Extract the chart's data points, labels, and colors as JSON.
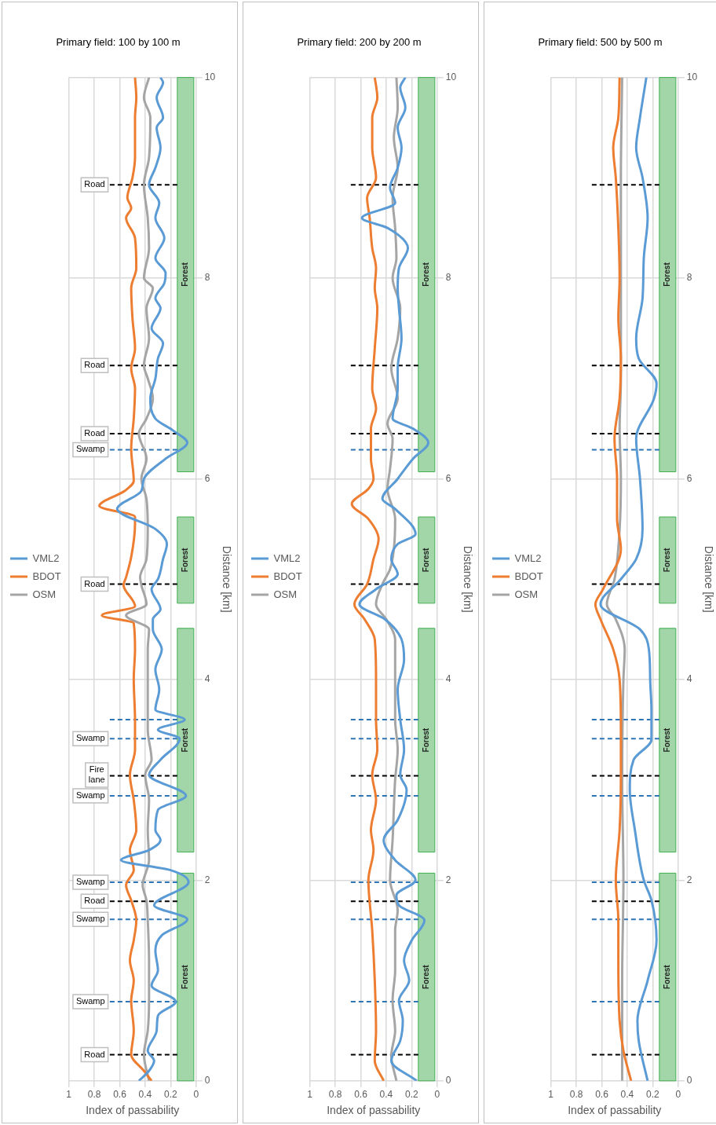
{
  "chart_data": [
    {
      "type": "line",
      "title": "Primary field: 100 by 100 m",
      "xlabel": "Index of passability",
      "ylabel": "Distance [km]",
      "xlim": [
        1,
        0
      ],
      "xticks": [
        1,
        0.8,
        0.6,
        0.4,
        0.2,
        0
      ],
      "ylim": [
        0,
        10
      ],
      "yticks": [
        0,
        2,
        4,
        6,
        8,
        10
      ],
      "grid": true,
      "legend": "left",
      "marker": "none",
      "line_style": "solid",
      "series": [
        {
          "name": "VML2",
          "color": "#5b9bd5",
          "x": [
            0.45,
            0.37,
            0.33,
            0.38,
            0.31,
            0.3,
            0.16,
            0.35,
            0.3,
            0.32,
            0.27,
            0.07,
            0.33,
            0.06,
            0.2,
            0.59,
            0.37,
            0.28,
            0.32,
            0.3,
            0.08,
            0.37,
            0.28,
            0.13,
            0.3,
            0.09,
            0.32,
            0.29,
            0.32,
            0.27,
            0.34,
            0.34,
            0.28,
            0.35,
            0.3,
            0.26,
            0.23,
            0.32,
            0.62,
            0.43,
            0.41,
            0.24,
            0.07,
            0.18,
            0.32,
            0.36,
            0.32,
            0.3,
            0.26,
            0.35,
            0.28,
            0.32,
            0.25,
            0.24,
            0.32,
            0.25,
            0.32,
            0.29,
            0.37,
            0.32,
            0.28,
            0.31,
            0.26,
            0.31,
            0.26,
            0.28
          ],
          "values": [
            0,
            0.1,
            0.2,
            0.3,
            0.5,
            0.65,
            0.79,
            0.95,
            1.1,
            1.3,
            1.45,
            1.61,
            1.75,
            1.98,
            2.1,
            2.2,
            2.3,
            2.4,
            2.5,
            2.7,
            2.84,
            3.05,
            3.2,
            3.41,
            3.5,
            3.6,
            3.7,
            3.9,
            4.1,
            4.3,
            4.5,
            4.6,
            4.7,
            4.9,
            5.0,
            5.2,
            5.35,
            5.5,
            5.7,
            5.88,
            6.0,
            6.2,
            6.36,
            6.48,
            6.6,
            6.8,
            7.0,
            7.2,
            7.35,
            7.5,
            7.7,
            7.8,
            7.95,
            8.05,
            8.2,
            8.4,
            8.6,
            8.75,
            8.93,
            9.1,
            9.3,
            9.5,
            9.6,
            9.8,
            9.95,
            10
          ]
        },
        {
          "name": "BDOT",
          "color": "#ed7d31",
          "x": [
            0.35,
            0.41,
            0.51,
            0.49,
            0.51,
            0.49,
            0.52,
            0.49,
            0.47,
            0.51,
            0.55,
            0.49,
            0.52,
            0.47,
            0.49,
            0.52,
            0.48,
            0.48,
            0.49,
            0.48,
            0.49,
            0.74,
            0.48,
            0.57,
            0.55,
            0.51,
            0.48,
            0.48,
            0.76,
            0.56,
            0.49,
            0.51,
            0.49,
            0.48,
            0.51,
            0.48,
            0.5,
            0.51,
            0.47,
            0.48,
            0.55,
            0.51,
            0.54,
            0.5,
            0.48,
            0.48,
            0.47,
            0.48
          ],
          "values": [
            0,
            0.1,
            0.26,
            0.5,
            0.8,
            1.0,
            1.2,
            1.4,
            1.6,
            1.8,
            1.95,
            2.1,
            2.3,
            2.5,
            2.8,
            3.05,
            3.3,
            3.6,
            4.0,
            4.3,
            4.56,
            4.64,
            4.73,
            4.94,
            5.02,
            5.22,
            5.55,
            5.62,
            5.73,
            5.88,
            5.98,
            6.3,
            6.6,
            6.9,
            7.1,
            7.3,
            7.6,
            7.9,
            8.1,
            8.4,
            8.6,
            8.7,
            8.8,
            9.0,
            9.2,
            9.6,
            9.8,
            10
          ]
        },
        {
          "name": "OSM",
          "color": "#a5a5a5",
          "x": [
            0.37,
            0.41,
            0.38,
            0.37,
            0.37,
            0.38,
            0.39,
            0.42,
            0.37,
            0.38,
            0.37,
            0.4,
            0.35,
            0.38,
            0.38,
            0.38,
            0.37,
            0.55,
            0.39,
            0.43,
            0.44,
            0.39,
            0.38,
            0.39,
            0.43,
            0.39,
            0.45,
            0.39,
            0.34,
            0.38,
            0.41,
            0.37,
            0.39,
            0.34,
            0.41,
            0.37,
            0.38,
            0.41,
            0.37,
            0.36,
            0.41,
            0.37
          ],
          "values": [
            0,
            0.26,
            0.5,
            0.8,
            1.2,
            1.6,
            1.8,
            1.95,
            2.2,
            2.5,
            2.8,
            3.05,
            3.2,
            3.5,
            4.0,
            4.3,
            4.5,
            4.64,
            4.75,
            4.94,
            5.02,
            5.2,
            5.5,
            5.8,
            6.0,
            6.2,
            6.45,
            6.6,
            6.8,
            7.0,
            7.13,
            7.4,
            7.7,
            7.9,
            8.0,
            8.3,
            8.6,
            8.93,
            9.2,
            9.6,
            9.8,
            10
          ]
        }
      ],
      "ref_lines": [
        {
          "axis": "y",
          "value": 0.26,
          "label": "Road",
          "color": "#000000",
          "line_style": "dashed"
        },
        {
          "axis": "y",
          "value": 0.79,
          "label": "Swamp",
          "color": "#2e75b6",
          "line_style": "dashed"
        },
        {
          "axis": "y",
          "value": 1.61,
          "label": "Swamp",
          "color": "#2e75b6",
          "line_style": "dashed"
        },
        {
          "axis": "y",
          "value": 1.79,
          "label": "Road",
          "color": "#000000",
          "line_style": "dashed"
        },
        {
          "axis": "y",
          "value": 1.98,
          "label": "Swamp",
          "color": "#2e75b6",
          "line_style": "dashed"
        },
        {
          "axis": "y",
          "value": 2.84,
          "label": "Swamp",
          "color": "#2e75b6",
          "line_style": "dashed"
        },
        {
          "axis": "y",
          "value": 3.04,
          "label": "Fire lane",
          "color": "#000000",
          "line_style": "dashed"
        },
        {
          "axis": "y",
          "value": 3.41,
          "label": "Swamp",
          "color": "#2e75b6",
          "line_style": "dashed"
        },
        {
          "axis": "y",
          "value": 3.6,
          "color": "#2e75b6",
          "line_style": "dashed"
        },
        {
          "axis": "y",
          "value": 4.95,
          "label": "Road",
          "color": "#000000",
          "line_style": "dashed"
        },
        {
          "axis": "y",
          "value": 6.29,
          "label": "Swamp",
          "color": "#2e75b6",
          "line_style": "dashed"
        },
        {
          "axis": "y",
          "value": 6.45,
          "label": "Road",
          "color": "#000000",
          "line_style": "dashed"
        },
        {
          "axis": "y",
          "value": 7.13,
          "label": "Road",
          "color": "#000000",
          "line_style": "dashed"
        },
        {
          "axis": "y",
          "value": 8.93,
          "label": "Road",
          "color": "#000000",
          "line_style": "dashed"
        }
      ],
      "bands": [
        {
          "axis": "y",
          "from": 0,
          "to": 2.07,
          "label": "Forest",
          "color": "#a2d6a8"
        },
        {
          "axis": "y",
          "from": 2.28,
          "to": 4.51,
          "label": "Forest",
          "color": "#a2d6a8"
        },
        {
          "axis": "y",
          "from": 4.76,
          "to": 5.62,
          "label": "Forest",
          "color": "#a2d6a8"
        },
        {
          "axis": "y",
          "from": 6.07,
          "to": 10,
          "label": "Forest",
          "color": "#a2d6a8"
        }
      ]
    },
    {
      "type": "line",
      "title": "Primary field: 200 by 200 m",
      "xlabel": "Index of passability",
      "ylabel": "Distance [km]",
      "xlim": [
        1,
        0
      ],
      "xticks": [
        1,
        0.8,
        0.6,
        0.4,
        0.2,
        0
      ],
      "ylim": [
        0,
        10
      ],
      "yticks": [
        0,
        2,
        4,
        6,
        8,
        10
      ],
      "grid": true,
      "legend": "left",
      "marker": "none",
      "line_style": "solid",
      "series": [
        {
          "name": "VML2",
          "color": "#5b9bd5",
          "x": [
            0.16,
            0.36,
            0.29,
            0.27,
            0.3,
            0.22,
            0.26,
            0.2,
            0.1,
            0.3,
            0.32,
            0.17,
            0.33,
            0.42,
            0.31,
            0.24,
            0.29,
            0.26,
            0.29,
            0.31,
            0.26,
            0.28,
            0.41,
            0.61,
            0.48,
            0.31,
            0.36,
            0.31,
            0.17,
            0.33,
            0.43,
            0.31,
            0.19,
            0.07,
            0.19,
            0.35,
            0.31,
            0.31,
            0.28,
            0.3,
            0.31,
            0.3,
            0.23,
            0.39,
            0.59,
            0.33,
            0.37,
            0.31,
            0.28,
            0.31,
            0.25,
            0.29,
            0.25
          ],
          "values": [
            0,
            0.2,
            0.4,
            0.6,
            0.8,
            1.0,
            1.2,
            1.4,
            1.6,
            1.75,
            1.85,
            2.0,
            2.2,
            2.4,
            2.6,
            2.9,
            3.05,
            3.3,
            3.6,
            3.9,
            4.2,
            4.4,
            4.6,
            4.75,
            4.9,
            5.05,
            5.2,
            5.35,
            5.45,
            5.7,
            5.8,
            6.0,
            6.2,
            6.36,
            6.5,
            6.6,
            6.9,
            7.1,
            7.4,
            7.7,
            7.9,
            8.1,
            8.3,
            8.5,
            8.6,
            8.75,
            8.9,
            9.1,
            9.3,
            9.5,
            9.7,
            9.9,
            10
          ]
        },
        {
          "name": "BDOT",
          "color": "#ed7d31",
          "x": [
            0.42,
            0.49,
            0.48,
            0.49,
            0.51,
            0.54,
            0.5,
            0.52,
            0.48,
            0.51,
            0.47,
            0.48,
            0.48,
            0.49,
            0.57,
            0.65,
            0.55,
            0.5,
            0.46,
            0.54,
            0.67,
            0.54,
            0.5,
            0.52,
            0.52,
            0.48,
            0.51,
            0.49,
            0.47,
            0.49,
            0.48,
            0.51,
            0.53,
            0.55,
            0.48,
            0.51,
            0.51,
            0.47,
            0.49
          ],
          "values": [
            0,
            0.2,
            0.5,
            1.0,
            1.5,
            2.0,
            2.3,
            2.5,
            2.8,
            3.05,
            3.3,
            3.6,
            4.0,
            4.4,
            4.6,
            4.75,
            4.95,
            5.2,
            5.4,
            5.6,
            5.75,
            5.9,
            6.0,
            6.2,
            6.5,
            6.7,
            6.9,
            7.3,
            7.7,
            7.9,
            8.1,
            8.3,
            8.6,
            8.8,
            9.0,
            9.3,
            9.6,
            9.8,
            10
          ]
        },
        {
          "name": "OSM",
          "color": "#a5a5a5",
          "x": [
            0.32,
            0.36,
            0.33,
            0.35,
            0.33,
            0.33,
            0.31,
            0.37,
            0.35,
            0.33,
            0.31,
            0.33,
            0.33,
            0.33,
            0.4,
            0.48,
            0.43,
            0.37,
            0.34,
            0.33,
            0.39,
            0.37,
            0.35,
            0.39,
            0.31,
            0.36,
            0.31,
            0.29,
            0.35,
            0.32,
            0.33,
            0.35,
            0.31,
            0.34,
            0.31,
            0.32
          ],
          "values": [
            0,
            0.25,
            0.5,
            0.8,
            1.1,
            1.5,
            1.7,
            2.0,
            2.4,
            3.0,
            3.3,
            3.6,
            4.0,
            4.4,
            4.6,
            4.75,
            4.95,
            5.1,
            5.3,
            5.6,
            5.9,
            6.1,
            6.4,
            6.55,
            6.8,
            7.1,
            7.4,
            7.7,
            8.0,
            8.2,
            8.5,
            8.8,
            9.1,
            9.4,
            9.7,
            10
          ]
        }
      ],
      "ref_lines": [
        {
          "axis": "y",
          "value": 0.26,
          "color": "#000000",
          "line_style": "dashed"
        },
        {
          "axis": "y",
          "value": 0.79,
          "color": "#2e75b6",
          "line_style": "dashed"
        },
        {
          "axis": "y",
          "value": 1.61,
          "color": "#2e75b6",
          "line_style": "dashed"
        },
        {
          "axis": "y",
          "value": 1.79,
          "color": "#000000",
          "line_style": "dashed"
        },
        {
          "axis": "y",
          "value": 1.98,
          "color": "#2e75b6",
          "line_style": "dashed"
        },
        {
          "axis": "y",
          "value": 2.84,
          "color": "#2e75b6",
          "line_style": "dashed"
        },
        {
          "axis": "y",
          "value": 3.04,
          "color": "#000000",
          "line_style": "dashed"
        },
        {
          "axis": "y",
          "value": 3.41,
          "color": "#2e75b6",
          "line_style": "dashed"
        },
        {
          "axis": "y",
          "value": 3.6,
          "color": "#2e75b6",
          "line_style": "dashed"
        },
        {
          "axis": "y",
          "value": 4.95,
          "color": "#000000",
          "line_style": "dashed"
        },
        {
          "axis": "y",
          "value": 6.29,
          "color": "#2e75b6",
          "line_style": "dashed"
        },
        {
          "axis": "y",
          "value": 6.45,
          "color": "#000000",
          "line_style": "dashed"
        },
        {
          "axis": "y",
          "value": 7.13,
          "color": "#000000",
          "line_style": "dashed"
        },
        {
          "axis": "y",
          "value": 8.93,
          "color": "#000000",
          "line_style": "dashed"
        }
      ],
      "bands": [
        {
          "axis": "y",
          "from": 0,
          "to": 2.07,
          "label": "Forest",
          "color": "#a2d6a8"
        },
        {
          "axis": "y",
          "from": 2.28,
          "to": 4.51,
          "label": "Forest",
          "color": "#a2d6a8"
        },
        {
          "axis": "y",
          "from": 4.76,
          "to": 5.62,
          "label": "Forest",
          "color": "#a2d6a8"
        },
        {
          "axis": "y",
          "from": 6.07,
          "to": 10,
          "label": "Forest",
          "color": "#a2d6a8"
        }
      ]
    },
    {
      "type": "line",
      "title": "Primary field: 500 by 500 m",
      "xlabel": "Index of passability",
      "ylabel": "Distance [km]",
      "xlim": [
        1,
        0
      ],
      "xticks": [
        1,
        0.8,
        0.6,
        0.4,
        0.2,
        0
      ],
      "ylim": [
        0,
        10
      ],
      "yticks": [
        0,
        2,
        4,
        6,
        8,
        10
      ],
      "grid": true,
      "legend": "left",
      "marker": "none",
      "line_style": "solid",
      "series": [
        {
          "name": "VML2",
          "color": "#5b9bd5",
          "x": [
            0.24,
            0.31,
            0.32,
            0.24,
            0.17,
            0.21,
            0.27,
            0.34,
            0.38,
            0.35,
            0.21,
            0.21,
            0.22,
            0.23,
            0.3,
            0.61,
            0.45,
            0.33,
            0.28,
            0.3,
            0.33,
            0.19,
            0.17,
            0.31,
            0.33,
            0.28,
            0.27,
            0.24,
            0.28,
            0.33,
            0.3,
            0.25
          ],
          "values": [
            0,
            0.4,
            0.6,
            1.0,
            1.4,
            1.8,
            2.0,
            2.5,
            2.9,
            3.2,
            3.4,
            3.7,
            4.0,
            4.3,
            4.5,
            4.75,
            5.0,
            5.2,
            5.5,
            6.0,
            6.4,
            6.8,
            6.95,
            7.2,
            7.4,
            7.8,
            8.2,
            8.6,
            9.0,
            9.3,
            9.6,
            10
          ]
        },
        {
          "name": "BDOT",
          "color": "#ed7d31",
          "x": [
            0.37,
            0.43,
            0.46,
            0.47,
            0.47,
            0.49,
            0.46,
            0.45,
            0.45,
            0.46,
            0.51,
            0.61,
            0.65,
            0.59,
            0.45,
            0.48,
            0.48,
            0.5,
            0.46,
            0.45,
            0.47,
            0.46,
            0.47,
            0.49,
            0.51,
            0.47,
            0.46
          ],
          "values": [
            0,
            0.3,
            0.6,
            1.2,
            1.6,
            2.0,
            2.5,
            3.0,
            3.5,
            4.0,
            4.3,
            4.6,
            4.75,
            4.9,
            5.3,
            5.6,
            6.0,
            6.4,
            6.8,
            7.2,
            7.6,
            8.0,
            8.5,
            9.0,
            9.3,
            9.6,
            10
          ]
        },
        {
          "name": "OSM",
          "color": "#a5a5a5",
          "x": [
            0.44,
            0.44,
            0.43,
            0.44,
            0.43,
            0.42,
            0.49,
            0.56,
            0.5,
            0.46,
            0.45,
            0.46,
            0.45,
            0.45,
            0.45,
            0.45,
            0.44
          ],
          "values": [
            0,
            1,
            2,
            3,
            4,
            4.3,
            4.6,
            4.75,
            5.0,
            5.5,
            6,
            6.5,
            7,
            7.5,
            8,
            9,
            10
          ]
        }
      ],
      "ref_lines": [
        {
          "axis": "y",
          "value": 0.26,
          "color": "#000000",
          "line_style": "dashed"
        },
        {
          "axis": "y",
          "value": 0.79,
          "color": "#2e75b6",
          "line_style": "dashed"
        },
        {
          "axis": "y",
          "value": 1.61,
          "color": "#2e75b6",
          "line_style": "dashed"
        },
        {
          "axis": "y",
          "value": 1.79,
          "color": "#000000",
          "line_style": "dashed"
        },
        {
          "axis": "y",
          "value": 1.98,
          "color": "#2e75b6",
          "line_style": "dashed"
        },
        {
          "axis": "y",
          "value": 2.84,
          "color": "#2e75b6",
          "line_style": "dashed"
        },
        {
          "axis": "y",
          "value": 3.04,
          "color": "#000000",
          "line_style": "dashed"
        },
        {
          "axis": "y",
          "value": 3.41,
          "color": "#2e75b6",
          "line_style": "dashed"
        },
        {
          "axis": "y",
          "value": 3.6,
          "color": "#2e75b6",
          "line_style": "dashed"
        },
        {
          "axis": "y",
          "value": 4.95,
          "color": "#000000",
          "line_style": "dashed"
        },
        {
          "axis": "y",
          "value": 6.29,
          "color": "#2e75b6",
          "line_style": "dashed"
        },
        {
          "axis": "y",
          "value": 6.45,
          "color": "#000000",
          "line_style": "dashed"
        },
        {
          "axis": "y",
          "value": 7.13,
          "color": "#000000",
          "line_style": "dashed"
        },
        {
          "axis": "y",
          "value": 8.93,
          "color": "#000000",
          "line_style": "dashed"
        }
      ],
      "bands": [
        {
          "axis": "y",
          "from": 0,
          "to": 2.07,
          "label": "Forest",
          "color": "#a2d6a8"
        },
        {
          "axis": "y",
          "from": 2.28,
          "to": 4.51,
          "label": "Forest",
          "color": "#a2d6a8"
        },
        {
          "axis": "y",
          "from": 4.76,
          "to": 5.62,
          "label": "Forest",
          "color": "#a2d6a8"
        },
        {
          "axis": "y",
          "from": 6.07,
          "to": 10,
          "label": "Forest",
          "color": "#a2d6a8"
        }
      ]
    }
  ]
}
